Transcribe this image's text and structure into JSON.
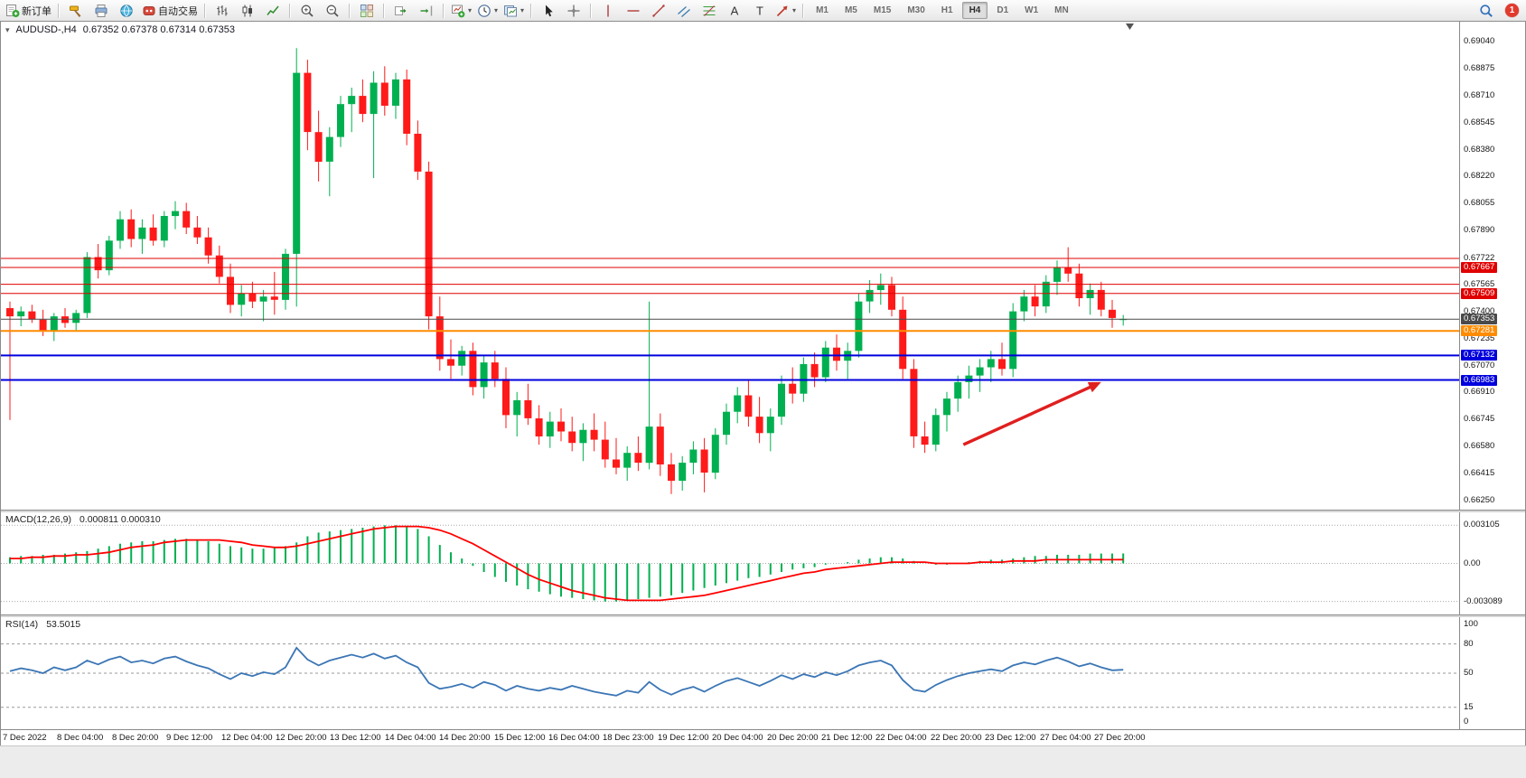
{
  "app": {
    "toolbar": {
      "items": [
        {
          "name": "new-order-button",
          "icon": "new-order-icon",
          "label": "新订单"
        },
        {
          "sep": true
        },
        {
          "name": "metaeditor-button",
          "icon": "hammer-icon"
        },
        {
          "name": "print-button",
          "icon": "print-icon"
        },
        {
          "name": "web-terminal-button",
          "icon": "globe-icon"
        },
        {
          "name": "autotrading-button",
          "icon": "autotrading-icon",
          "label": "自动交易"
        },
        {
          "sep": true
        },
        {
          "name": "bar-chart-button",
          "icon": "bar-chart-icon"
        },
        {
          "name": "candlestick-chart-button",
          "icon": "candlestick-icon"
        },
        {
          "name": "line-chart-button",
          "icon": "line-chart-icon"
        },
        {
          "sep": true
        },
        {
          "name": "zoom-in-button",
          "icon": "zoom-in-icon"
        },
        {
          "name": "zoom-out-button",
          "icon": "zoom-out-icon"
        },
        {
          "sep": true
        },
        {
          "name": "tile-windows-button",
          "icon": "tile-windows-icon"
        },
        {
          "sep": true
        },
        {
          "name": "auto-scroll-button",
          "icon": "auto-scroll-icon"
        },
        {
          "name": "chart-shift-button",
          "icon": "chart-shift-icon"
        },
        {
          "sep": true
        },
        {
          "name": "new-chart-button",
          "icon": "new-chart-icon",
          "dropdown": true
        },
        {
          "name": "periods-button",
          "icon": "clock-icon",
          "dropdown": true
        },
        {
          "name": "templates-button",
          "icon": "template-icon",
          "dropdown": true
        },
        {
          "sep": true
        },
        {
          "name": "cursor-button",
          "icon": "cursor-icon"
        },
        {
          "name": "crosshair-button",
          "icon": "crosshair-icon"
        },
        {
          "sep": true
        },
        {
          "name": "vertical-line-button",
          "icon": "vertical-line-icon"
        },
        {
          "name": "horizontal-line-button",
          "icon": "horizontal-line-icon"
        },
        {
          "name": "trendline-button",
          "icon": "trendline-icon"
        },
        {
          "name": "channel-button",
          "icon": "channel-icon"
        },
        {
          "name": "fibonacci-button",
          "icon": "fibonacci-icon"
        },
        {
          "name": "text-button",
          "icon": "text-icon"
        },
        {
          "name": "text-label-button",
          "icon": "text-label-icon"
        },
        {
          "name": "arrows-button",
          "icon": "arrows-icon",
          "dropdown": true
        },
        {
          "sep": true
        }
      ],
      "timeframes": {
        "options": [
          "M1",
          "M5",
          "M15",
          "M30",
          "H1",
          "H4",
          "D1",
          "W1",
          "MN"
        ],
        "active": "H4"
      },
      "notification_badge": "1"
    }
  },
  "chart": {
    "symbol_period": "AUDUSD-,H4",
    "ohlc_text": "0.67352 0.67378 0.67314 0.67353"
  },
  "chart_data": {
    "type": "candlestick",
    "symbol": "AUDUSD",
    "period": "H4",
    "colors": {
      "up": "#00b050",
      "down": "#ff1a1a",
      "bg": "#ffffff"
    },
    "price_axis_range": {
      "top": 0.69161,
      "bottom": 0.66195
    },
    "price_axis_labels": [
      "0.69040",
      "0.68875",
      "0.68710",
      "0.68545",
      "0.68380",
      "0.68220",
      "0.68055",
      "0.67890",
      "0.67722",
      "0.67565",
      "0.67400",
      "0.67235",
      "0.67070",
      "0.66910",
      "0.66745",
      "0.66580",
      "0.66415",
      "0.66250"
    ],
    "time_labels": [
      "7 Dec 2022",
      "8 Dec 04:00",
      "8 Dec 20:00",
      "9 Dec 12:00",
      "12 Dec 04:00",
      "12 Dec 20:00",
      "13 Dec 12:00",
      "14 Dec 04:00",
      "14 Dec 20:00",
      "15 Dec 12:00",
      "16 Dec 04:00",
      "18 Dec 23:00",
      "19 Dec 12:00",
      "20 Dec 04:00",
      "20 Dec 20:00",
      "21 Dec 12:00",
      "22 Dec 04:00",
      "22 Dec 20:00",
      "23 Dec 12:00",
      "27 Dec 04:00",
      "27 Dec 20:00"
    ],
    "candles": [
      [
        0.6742,
        0.6746,
        0.6674,
        0.6737
      ],
      [
        0.6737,
        0.6743,
        0.6731,
        0.674
      ],
      [
        0.674,
        0.6744,
        0.6733,
        0.6735
      ],
      [
        0.6735,
        0.6741,
        0.6725,
        0.6728
      ],
      [
        0.6728,
        0.6739,
        0.6722,
        0.6737
      ],
      [
        0.6737,
        0.6742,
        0.673,
        0.6733
      ],
      [
        0.6733,
        0.6741,
        0.6728,
        0.6739
      ],
      [
        0.6739,
        0.6776,
        0.6736,
        0.6773
      ],
      [
        0.6773,
        0.6781,
        0.676,
        0.6765
      ],
      [
        0.6765,
        0.6786,
        0.6762,
        0.6783
      ],
      [
        0.6783,
        0.6801,
        0.6778,
        0.6796
      ],
      [
        0.6796,
        0.6802,
        0.6779,
        0.6784
      ],
      [
        0.6784,
        0.6796,
        0.6775,
        0.6791
      ],
      [
        0.6791,
        0.6799,
        0.678,
        0.6783
      ],
      [
        0.6783,
        0.6801,
        0.6779,
        0.6798
      ],
      [
        0.6798,
        0.6807,
        0.679,
        0.6801
      ],
      [
        0.6801,
        0.6806,
        0.6787,
        0.6791
      ],
      [
        0.6791,
        0.6798,
        0.6781,
        0.6785
      ],
      [
        0.6785,
        0.6791,
        0.6769,
        0.6774
      ],
      [
        0.6774,
        0.678,
        0.6757,
        0.6761
      ],
      [
        0.6761,
        0.6769,
        0.6739,
        0.6744
      ],
      [
        0.6744,
        0.6756,
        0.6737,
        0.6751
      ],
      [
        0.6751,
        0.6758,
        0.6742,
        0.6746
      ],
      [
        0.6746,
        0.6753,
        0.6734,
        0.6749
      ],
      [
        0.6749,
        0.6764,
        0.6738,
        0.6747
      ],
      [
        0.6747,
        0.6778,
        0.6741,
        0.6775
      ],
      [
        0.6775,
        0.69,
        0.6743,
        0.6885
      ],
      [
        0.6885,
        0.6893,
        0.6838,
        0.6849
      ],
      [
        0.6849,
        0.6862,
        0.6819,
        0.6831
      ],
      [
        0.6831,
        0.6852,
        0.681,
        0.6846
      ],
      [
        0.6846,
        0.6871,
        0.684,
        0.6866
      ],
      [
        0.6866,
        0.6876,
        0.6849,
        0.6871
      ],
      [
        0.6871,
        0.6881,
        0.6855,
        0.686
      ],
      [
        0.686,
        0.6886,
        0.6821,
        0.6879
      ],
      [
        0.6879,
        0.6889,
        0.6859,
        0.6865
      ],
      [
        0.6865,
        0.6885,
        0.6857,
        0.6881
      ],
      [
        0.6881,
        0.6887,
        0.6841,
        0.6848
      ],
      [
        0.6848,
        0.6856,
        0.682,
        0.6825
      ],
      [
        0.6825,
        0.6831,
        0.6729,
        0.6737
      ],
      [
        0.6737,
        0.6749,
        0.6704,
        0.6711
      ],
      [
        0.6711,
        0.6723,
        0.6699,
        0.6707
      ],
      [
        0.6707,
        0.6719,
        0.6701,
        0.6716
      ],
      [
        0.6716,
        0.6721,
        0.6689,
        0.6694
      ],
      [
        0.6694,
        0.6713,
        0.6687,
        0.6709
      ],
      [
        0.6709,
        0.6716,
        0.6694,
        0.6699
      ],
      [
        0.6699,
        0.6706,
        0.6669,
        0.6677
      ],
      [
        0.6677,
        0.6691,
        0.6664,
        0.6686
      ],
      [
        0.6686,
        0.6696,
        0.6671,
        0.6675
      ],
      [
        0.6675,
        0.6683,
        0.6659,
        0.6664
      ],
      [
        0.6664,
        0.6679,
        0.6657,
        0.6673
      ],
      [
        0.6673,
        0.6681,
        0.6661,
        0.6667
      ],
      [
        0.6667,
        0.6676,
        0.6655,
        0.666
      ],
      [
        0.666,
        0.6672,
        0.6649,
        0.6668
      ],
      [
        0.6668,
        0.6678,
        0.6655,
        0.6662
      ],
      [
        0.6662,
        0.6673,
        0.6645,
        0.665
      ],
      [
        0.665,
        0.6663,
        0.6641,
        0.6645
      ],
      [
        0.6645,
        0.6658,
        0.6637,
        0.6654
      ],
      [
        0.6654,
        0.6664,
        0.6643,
        0.6648
      ],
      [
        0.6648,
        0.6746,
        0.6644,
        0.667
      ],
      [
        0.667,
        0.6678,
        0.664,
        0.6647
      ],
      [
        0.6647,
        0.6654,
        0.6629,
        0.6637
      ],
      [
        0.6637,
        0.6652,
        0.6631,
        0.6648
      ],
      [
        0.6648,
        0.6661,
        0.6641,
        0.6656
      ],
      [
        0.6656,
        0.6663,
        0.663,
        0.6642
      ],
      [
        0.6642,
        0.6669,
        0.6638,
        0.6665
      ],
      [
        0.6665,
        0.6684,
        0.6659,
        0.6679
      ],
      [
        0.6679,
        0.6694,
        0.6672,
        0.6689
      ],
      [
        0.6689,
        0.6698,
        0.667,
        0.6676
      ],
      [
        0.6676,
        0.6688,
        0.666,
        0.6666
      ],
      [
        0.6666,
        0.6681,
        0.6655,
        0.6676
      ],
      [
        0.6676,
        0.6701,
        0.6671,
        0.6696
      ],
      [
        0.6696,
        0.6706,
        0.6684,
        0.669
      ],
      [
        0.669,
        0.6712,
        0.6685,
        0.6708
      ],
      [
        0.6708,
        0.6715,
        0.6694,
        0.67
      ],
      [
        0.67,
        0.6722,
        0.6697,
        0.6718
      ],
      [
        0.6718,
        0.6726,
        0.6704,
        0.671
      ],
      [
        0.671,
        0.6721,
        0.6699,
        0.6716
      ],
      [
        0.6716,
        0.6751,
        0.6712,
        0.6746
      ],
      [
        0.6746,
        0.6759,
        0.6739,
        0.6753
      ],
      [
        0.6753,
        0.6763,
        0.6744,
        0.6756
      ],
      [
        0.6756,
        0.6761,
        0.6737,
        0.6741
      ],
      [
        0.6741,
        0.6749,
        0.6699,
        0.6705
      ],
      [
        0.6705,
        0.6711,
        0.6657,
        0.6664
      ],
      [
        0.6664,
        0.6673,
        0.6654,
        0.6659
      ],
      [
        0.6659,
        0.6681,
        0.6655,
        0.6677
      ],
      [
        0.6677,
        0.6691,
        0.6667,
        0.6687
      ],
      [
        0.6687,
        0.6701,
        0.6679,
        0.6697
      ],
      [
        0.6697,
        0.6707,
        0.6687,
        0.6701
      ],
      [
        0.6701,
        0.6711,
        0.6691,
        0.6706
      ],
      [
        0.6706,
        0.6716,
        0.6697,
        0.6711
      ],
      [
        0.6711,
        0.6721,
        0.6701,
        0.6705
      ],
      [
        0.6705,
        0.6745,
        0.67,
        0.674
      ],
      [
        0.674,
        0.6753,
        0.6734,
        0.6749
      ],
      [
        0.6749,
        0.6756,
        0.6737,
        0.6743
      ],
      [
        0.6743,
        0.6762,
        0.6739,
        0.6758
      ],
      [
        0.6758,
        0.6771,
        0.675,
        0.6767
      ],
      [
        0.6767,
        0.6779,
        0.6758,
        0.6763
      ],
      [
        0.6763,
        0.6769,
        0.6743,
        0.6748
      ],
      [
        0.6748,
        0.6757,
        0.6738,
        0.6753
      ],
      [
        0.6753,
        0.6758,
        0.6737,
        0.6741
      ],
      [
        0.6741,
        0.6747,
        0.673,
        0.6736
      ],
      [
        0.67352,
        0.67378,
        0.67314,
        0.67353
      ]
    ],
    "hlines": [
      {
        "price": 0.67722,
        "color": "#e00000",
        "width": 1
      },
      {
        "price": 0.67667,
        "label": "0.67667",
        "color": "#e00000",
        "width": 1
      },
      {
        "price": 0.67565,
        "color": "#e00000",
        "width": 1
      },
      {
        "price": 0.67509,
        "label": "0.67509",
        "color": "#e00000",
        "width": 1
      },
      {
        "price": 0.67353,
        "label": "0.67353",
        "color": "#4a4a4a",
        "width": 1
      },
      {
        "price": 0.67281,
        "label": "0.67281",
        "color": "#ff8c00",
        "width": 2
      },
      {
        "price": 0.67132,
        "label": "0.67132",
        "color": "#0000dd",
        "width": 2
      },
      {
        "price": 0.66983,
        "label": "0.66983",
        "color": "#0000dd",
        "width": 2
      }
    ],
    "arrow": {
      "from_bar": 86.5,
      "from_price": 0.6659,
      "to_bar": 99,
      "to_price": 0.6697,
      "color": "#e01f1f"
    },
    "macd": {
      "label": "MACD(12,26,9)",
      "values_text": "0.000811 0.000310",
      "axis_labels": [
        "0.003105",
        "0.00",
        "-0.003089"
      ],
      "axis_values": [
        0.003105,
        0,
        -0.003089
      ],
      "range": {
        "max": 0.00345,
        "min": -0.00345
      },
      "histogram_color": "#00b050",
      "signal_color": "#ff0000",
      "histogram": [
        0.0005,
        0.0006,
        0.0006,
        0.0007,
        0.0007,
        0.0008,
        0.0009,
        0.001,
        0.0012,
        0.0014,
        0.0016,
        0.0017,
        0.0018,
        0.0018,
        0.0019,
        0.002,
        0.002,
        0.0019,
        0.0018,
        0.0016,
        0.0014,
        0.0013,
        0.0012,
        0.0012,
        0.0013,
        0.0014,
        0.0017,
        0.0022,
        0.0025,
        0.0026,
        0.0027,
        0.0028,
        0.0029,
        0.003,
        0.0031,
        0.0031,
        0.003,
        0.0028,
        0.0022,
        0.0015,
        0.0009,
        0.0004,
        -0.0002,
        -0.0007,
        -0.0011,
        -0.0015,
        -0.0018,
        -0.0021,
        -0.0023,
        -0.0025,
        -0.0027,
        -0.0028,
        -0.0029,
        -0.003,
        -0.0031,
        -0.0031,
        -0.003,
        -0.0029,
        -0.0028,
        -0.0027,
        -0.0026,
        -0.0024,
        -0.0022,
        -0.002,
        -0.0018,
        -0.0016,
        -0.0014,
        -0.0012,
        -0.0011,
        -0.0009,
        -0.0007,
        -0.0005,
        -0.0004,
        -0.0003,
        -0.0001,
        0.0,
        0.0001,
        0.0003,
        0.0004,
        0.0005,
        0.0005,
        0.0004,
        0.0002,
        0.0,
        -0.0001,
        -0.0001,
        0.0,
        0.0001,
        0.0002,
        0.0003,
        0.0003,
        0.0004,
        0.0005,
        0.0006,
        0.0006,
        0.0007,
        0.0007,
        0.0007,
        0.0008,
        0.0008,
        0.0008,
        0.000811
      ],
      "signal": [
        0.0004,
        0.0004,
        0.0005,
        0.0005,
        0.0006,
        0.0006,
        0.0007,
        0.0007,
        0.0008,
        0.0009,
        0.0011,
        0.0013,
        0.0014,
        0.0015,
        0.0017,
        0.0018,
        0.0019,
        0.0019,
        0.0019,
        0.0019,
        0.0018,
        0.0017,
        0.0015,
        0.0014,
        0.0013,
        0.0013,
        0.0014,
        0.0016,
        0.0018,
        0.002,
        0.0022,
        0.0024,
        0.0026,
        0.0028,
        0.0029,
        0.003,
        0.003,
        0.003,
        0.0029,
        0.0027,
        0.0024,
        0.002,
        0.0016,
        0.0011,
        0.0006,
        0.0001,
        -0.0004,
        -0.0009,
        -0.0013,
        -0.0016,
        -0.0019,
        -0.0022,
        -0.0024,
        -0.0026,
        -0.0028,
        -0.0029,
        -0.003,
        -0.003,
        -0.003,
        -0.003,
        -0.0029,
        -0.0028,
        -0.0027,
        -0.0026,
        -0.0024,
        -0.0022,
        -0.002,
        -0.0018,
        -0.0016,
        -0.0014,
        -0.0012,
        -0.001,
        -0.0008,
        -0.0007,
        -0.0005,
        -0.0004,
        -0.0003,
        -0.0002,
        -0.0001,
        0.0,
        0.0001,
        0.0001,
        0.0001,
        0.0001,
        0.0,
        0.0,
        0.0,
        0.0,
        0.0001,
        0.0001,
        0.0001,
        0.0002,
        0.0002,
        0.0002,
        0.0003,
        0.0003,
        0.0003,
        0.0003,
        0.0003,
        0.0003,
        0.0003,
        0.00031
      ]
    },
    "rsi": {
      "label": "RSI(14)",
      "value_text": "53.5015",
      "axis_labels": [
        "100",
        "80",
        "50",
        "15",
        "0"
      ],
      "axis_values": [
        100,
        80,
        50,
        15,
        0
      ],
      "levels": [
        80,
        50,
        15
      ],
      "line_color": "#3b76b5",
      "values": [
        52,
        55,
        53,
        50,
        56,
        53,
        56,
        63,
        59,
        64,
        67,
        61,
        63,
        60,
        65,
        67,
        62,
        58,
        55,
        49,
        44,
        50,
        47,
        51,
        49,
        56,
        76,
        64,
        58,
        63,
        66,
        69,
        66,
        70,
        65,
        68,
        61,
        56,
        40,
        34,
        36,
        39,
        35,
        41,
        38,
        32,
        37,
        34,
        32,
        35,
        33,
        37,
        34,
        31,
        29,
        27,
        32,
        30,
        41,
        33,
        28,
        33,
        36,
        31,
        37,
        42,
        45,
        41,
        37,
        42,
        48,
        44,
        49,
        46,
        51,
        48,
        52,
        58,
        61,
        63,
        58,
        43,
        33,
        31,
        38,
        43,
        47,
        50,
        52,
        54,
        52,
        58,
        61,
        59,
        63,
        66,
        62,
        57,
        60,
        56,
        53,
        53.5
      ]
    }
  }
}
